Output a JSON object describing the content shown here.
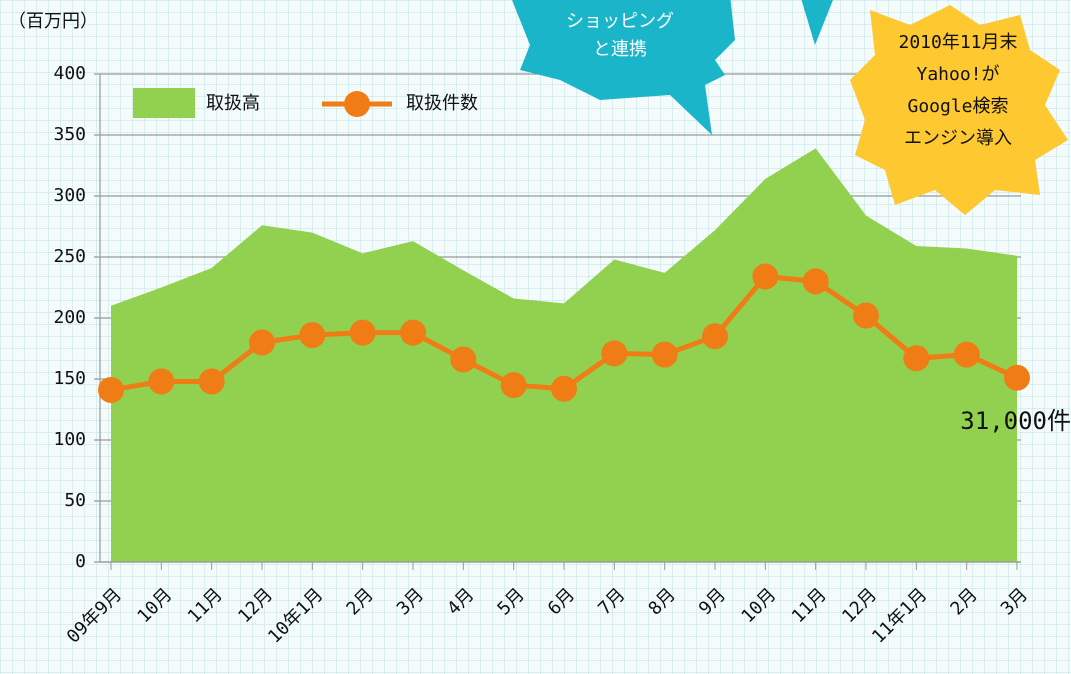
{
  "chart_data": {
    "type": "area-line",
    "unit_label": "（百万円）",
    "categories": [
      "09年9月",
      "10月",
      "11月",
      "12月",
      "10年1月",
      "2月",
      "3月",
      "4月",
      "5月",
      "6月",
      "7月",
      "8月",
      "9月",
      "10月",
      "11月",
      "12月",
      "11年1月",
      "2月",
      "3月"
    ],
    "series": [
      {
        "name": "取扱高",
        "kind": "area",
        "color": "#92d050",
        "values": [
          210,
          225,
          241,
          276,
          270,
          253,
          263,
          239,
          216,
          212,
          248,
          237,
          272,
          314,
          339,
          284,
          259,
          257,
          251
        ]
      },
      {
        "name": "取扱件数",
        "kind": "line",
        "color": "#f07c16",
        "values": [
          141,
          148,
          148,
          180,
          186,
          188,
          188,
          166,
          145,
          142,
          171,
          170,
          185,
          234,
          230,
          202,
          167,
          170,
          151
        ]
      }
    ],
    "ylim": [
      0,
      400
    ],
    "yticks": [
      0,
      50,
      100,
      150,
      200,
      250,
      300,
      350,
      400
    ],
    "grid": true,
    "annotations": {
      "shopping": [
        "ショッピング",
        "と連携"
      ],
      "yahoo": [
        "2010年11月末",
        "Yahoo!が",
        "Google検索",
        "エンジン導入"
      ],
      "last_count": "31,000件"
    }
  }
}
